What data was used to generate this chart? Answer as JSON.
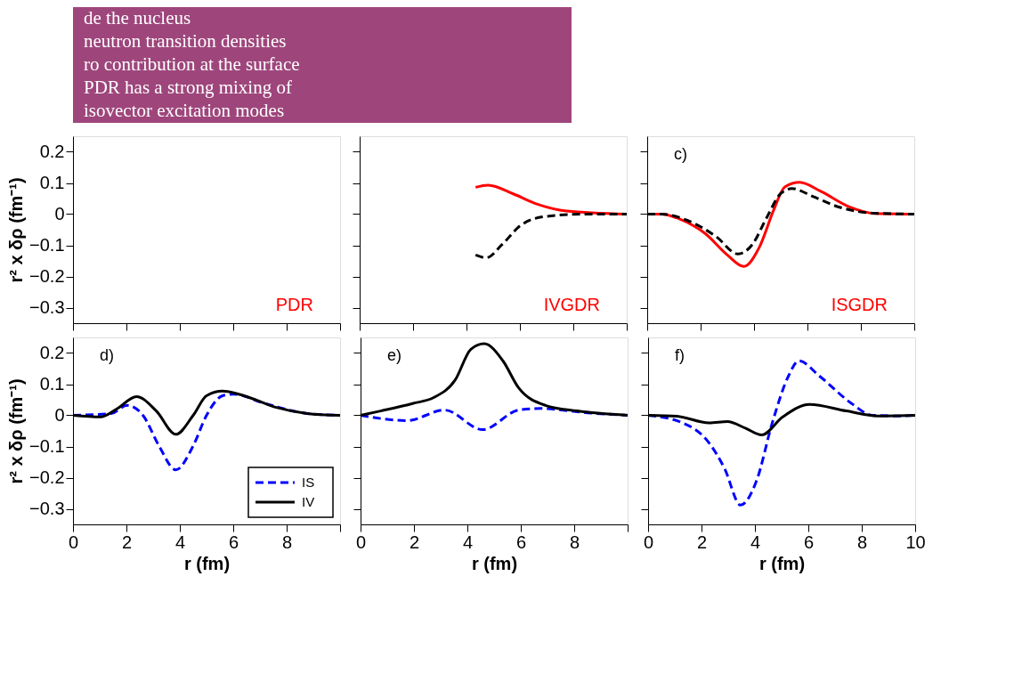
{
  "chart_data": [
    {
      "type": "other",
      "annotations": [
        "de the nucleus",
        "neutron transition densities",
        "ro contribution at the surface",
        "PDR has a strong mixing of",
        "isovector excitation modes"
      ]
    },
    {
      "type": "line",
      "xlim": [
        0,
        10
      ],
      "xticks": [
        0,
        2,
        4,
        6,
        8,
        10
      ],
      "ylim": [
        -0.35,
        0.25
      ],
      "yticks": [
        -0.3,
        -0.2,
        -0.1,
        0,
        0.1,
        0.2
      ],
      "ylabel": "r² x δρ (fm⁻¹)",
      "tick_labels": "y",
      "annotations": [
        "PDR"
      ]
    },
    {
      "type": "line",
      "xlim": [
        0,
        10
      ],
      "xticks": [
        0,
        2,
        4,
        6,
        8,
        10
      ],
      "ylim": [
        -0.35,
        0.25
      ],
      "yticks": [
        -0.3,
        -0.2,
        -0.1,
        0,
        0.1,
        0.2
      ],
      "tick_labels": false,
      "annotations": [
        "IVGDR"
      ],
      "series": [
        {
          "color": "#ff0000",
          "line_style": "solid",
          "x": [
            4.34,
            4.81,
            5.75,
            6.68,
            7.74,
            10
          ],
          "values": [
            0.086,
            0.093,
            0.065,
            0.031,
            0.01,
            0
          ]
        },
        {
          "color": "#000000",
          "line_style": "dashed",
          "x": [
            4.34,
            4.74,
            5.34,
            6.0,
            6.92,
            8.4,
            10
          ],
          "values": [
            -0.131,
            -0.14,
            -0.097,
            -0.038,
            -0.008,
            0,
            0
          ]
        }
      ]
    },
    {
      "type": "line",
      "title": "c)",
      "xlim": [
        0,
        10
      ],
      "xticks": [
        0,
        2,
        4,
        6,
        8,
        10
      ],
      "ylim": [
        -0.35,
        0.25
      ],
      "yticks": [
        -0.3,
        -0.2,
        -0.1,
        0,
        0.1,
        0.2
      ],
      "tick_labels": false,
      "annotations": [
        "ISGDR"
      ],
      "series": [
        {
          "color": "#ff0000",
          "line_style": "solid",
          "x": [
            0,
            0.55,
            1.1,
            2.18,
            3.0,
            3.62,
            4.2,
            4.74,
            5.15,
            5.71,
            6.5,
            7.57,
            8.5,
            10
          ],
          "values": [
            0,
            0,
            -0.012,
            -0.063,
            -0.131,
            -0.168,
            -0.106,
            0.014,
            0.087,
            0.102,
            0.073,
            0.023,
            0.002,
            0
          ]
        },
        {
          "color": "#000000",
          "line_style": "dashed",
          "x": [
            0,
            0.55,
            1.5,
            2.58,
            3.4,
            3.94,
            4.47,
            5.0,
            5.42,
            6.22,
            7.17,
            8.5,
            10
          ],
          "values": [
            0,
            0,
            -0.02,
            -0.072,
            -0.128,
            -0.097,
            -0.012,
            0.066,
            0.082,
            0.056,
            0.023,
            0.003,
            0
          ]
        }
      ]
    },
    {
      "type": "line",
      "title": "d)",
      "xlim": [
        0,
        10
      ],
      "xticks": [
        0,
        2,
        4,
        6,
        {
          "value": 10,
          "label": null
        },
        8
      ],
      "ylim": [
        -0.35,
        0.25
      ],
      "yticks": [
        -0.3,
        -0.2,
        -0.1,
        0,
        0.1,
        0.2
      ],
      "xlabel": "r (fm)",
      "ylabel": "r² x δρ (fm⁻¹)",
      "legend": "bottom right",
      "series": [
        {
          "name": "IS",
          "color": "#0000ff",
          "line_style": "dashed",
          "x": [
            0,
            1.43,
            2.03,
            2.62,
            3.22,
            3.85,
            4.5,
            5.0,
            5.6,
            6.0,
            7.19,
            8.77,
            10
          ],
          "values": [
            0,
            0.006,
            0.032,
            0,
            -0.098,
            -0.175,
            -0.098,
            0,
            0.063,
            0.068,
            0.038,
            0.006,
            0
          ]
        },
        {
          "name": "IV",
          "color": "#000000",
          "line_style": "solid",
          "x": [
            0,
            1.03,
            1.63,
            2.38,
            3.12,
            3.85,
            4.5,
            5.0,
            5.6,
            6.4,
            7.58,
            8.77,
            10
          ],
          "values": [
            0,
            -0.005,
            0.02,
            0.06,
            0.014,
            -0.061,
            0,
            0.063,
            0.078,
            0.063,
            0.026,
            0.006,
            0
          ]
        }
      ]
    },
    {
      "type": "line",
      "title": "e)",
      "xlim": [
        0,
        10
      ],
      "xticks": [
        0,
        2,
        4,
        6,
        8,
        {
          "value": 10,
          "label": null
        }
      ],
      "ylim": [
        -0.35,
        0.25
      ],
      "yticks": [
        -0.3,
        -0.2,
        -0.1,
        0,
        0.1,
        0.2
      ],
      "xlabel": "r (fm)",
      "tick_labels": "x",
      "series": [
        {
          "color": "#0000ff",
          "line_style": "dashed",
          "x": [
            0,
            1.75,
            3.14,
            4.57,
            5.92,
            6.72,
            8.5,
            10
          ],
          "values": [
            0,
            -0.017,
            0.017,
            -0.046,
            0.017,
            0.022,
            0.008,
            0
          ]
        },
        {
          "color": "#000000",
          "line_style": "solid",
          "x": [
            0,
            0.75,
            1.95,
            2.74,
            3.54,
            4.13,
            4.63,
            5.33,
            5.92,
            6.92,
            8.11,
            10
          ],
          "values": [
            0,
            0.014,
            0.038,
            0.057,
            0.113,
            0.212,
            0.23,
            0.175,
            0.088,
            0.032,
            0.014,
            0
          ]
        }
      ]
    },
    {
      "type": "line",
      "title": "f)",
      "xlim": [
        0,
        10
      ],
      "xticks": [
        0,
        2,
        4,
        6,
        8,
        10
      ],
      "ylim": [
        -0.35,
        0.25
      ],
      "yticks": [
        -0.3,
        -0.2,
        -0.1,
        0,
        0.1,
        0.2
      ],
      "xlabel": "r (fm)",
      "tick_labels": "x",
      "series": [
        {
          "color": "#0000ff",
          "line_style": "dashed",
          "x": [
            0,
            1.29,
            2.28,
            2.87,
            3.46,
            4.06,
            4.65,
            5.25,
            5.64,
            6.43,
            7.62,
            8.4,
            9.4,
            10
          ],
          "values": [
            0,
            -0.024,
            -0.088,
            -0.172,
            -0.288,
            -0.21,
            -0.024,
            0.125,
            0.175,
            0.125,
            0.038,
            0,
            -0.002,
            0
          ]
        },
        {
          "color": "#000000",
          "line_style": "solid",
          "x": [
            0,
            1.09,
            2.28,
            2.97,
            3.66,
            4.25,
            5.04,
            6.04,
            7.42,
            8.6,
            10
          ],
          "values": [
            0,
            -0.003,
            -0.024,
            -0.02,
            -0.042,
            -0.063,
            -0.005,
            0.035,
            0.014,
            -0.002,
            0
          ]
        }
      ]
    }
  ]
}
